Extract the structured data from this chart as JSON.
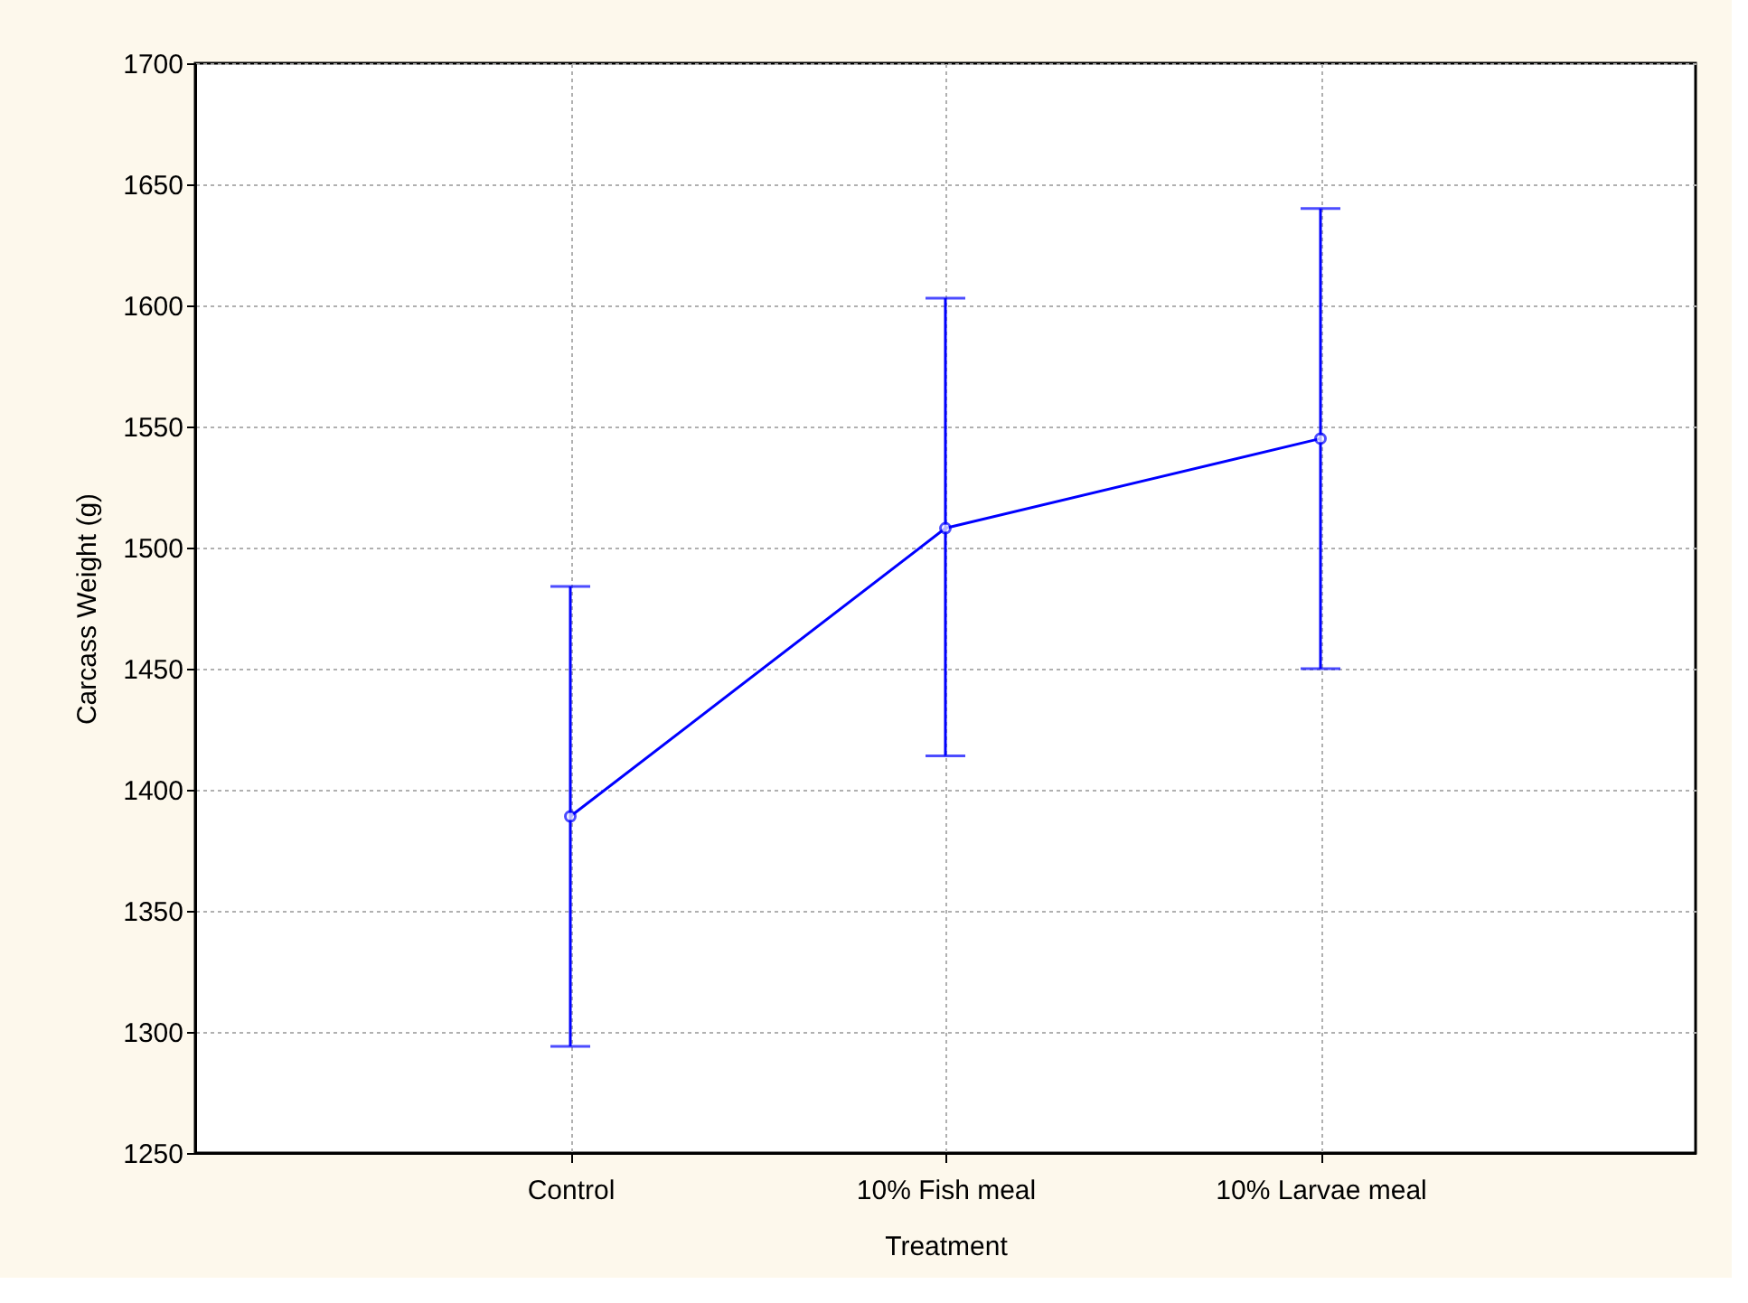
{
  "chart_data": {
    "type": "line",
    "xlabel": "Treatment",
    "ylabel": "Carcass Weight (g)",
    "categories": [
      "Control",
      "10% Fish meal",
      "10% Larvae meal"
    ],
    "values": [
      1389,
      1508,
      1545
    ],
    "errors": [
      [
        1294,
        1484
      ],
      [
        1414,
        1603
      ],
      [
        1450,
        1640
      ]
    ],
    "color": "#0000ff",
    "marker": "circle",
    "line_style": "solid",
    "grid": true,
    "ylim": [
      1250,
      1700
    ],
    "yticks": [
      1250,
      1300,
      1350,
      1400,
      1450,
      1500,
      1550,
      1600,
      1650,
      1700
    ]
  }
}
